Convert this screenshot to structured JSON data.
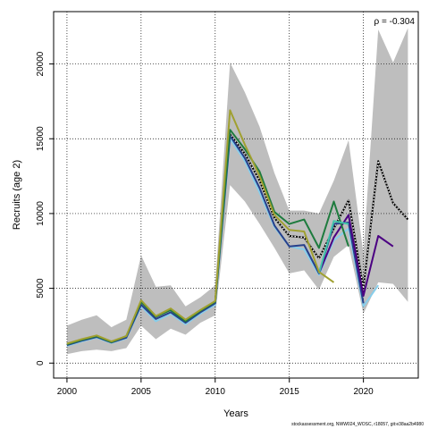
{
  "chart_data": {
    "type": "line",
    "xlabel": "Years",
    "ylabel": "Recruits (age 2)",
    "annotation": "ρ = -0.304",
    "xlim": [
      1999.1,
      2023.7
    ],
    "ylim": [
      -1000,
      23500
    ],
    "x_ticks": [
      2000,
      2005,
      2010,
      2015,
      2020
    ],
    "y_ticks": [
      0,
      5000,
      10000,
      15000,
      20000
    ],
    "grid": true,
    "grid_style": "dotted",
    "band": {
      "x": [
        2000,
        2001,
        2002,
        2003,
        2004,
        2005,
        2006,
        2007,
        2008,
        2009,
        2010,
        2011,
        2012,
        2013,
        2014,
        2015,
        2016,
        2017,
        2018,
        2019,
        2020,
        2021,
        2022,
        2023
      ],
      "lower": [
        600,
        800,
        900,
        800,
        1000,
        2500,
        1600,
        2300,
        1900,
        2700,
        3200,
        11900,
        10800,
        9300,
        7700,
        6000,
        6200,
        4900,
        7100,
        7900,
        3300,
        5400,
        5300,
        4100
      ],
      "upper": [
        2500,
        2900,
        3200,
        2400,
        2900,
        7200,
        5100,
        5200,
        3800,
        4400,
        5200,
        20100,
        18100,
        15800,
        12700,
        10200,
        10200,
        10000,
        12200,
        14900,
        7300,
        22300,
        20100,
        22400
      ],
      "color": "#bebebe"
    },
    "series": [
      {
        "color": "#000000",
        "style": "solid",
        "x": [
          2000,
          2001,
          2002,
          2003,
          2004,
          2005,
          2006,
          2007,
          2008,
          2009,
          2010,
          2011,
          2012,
          2013,
          2014,
          2015,
          2016,
          2017,
          2018,
          2019,
          2020,
          2021,
          2022,
          2023
        ],
        "y": [
          1250,
          1550,
          1800,
          1400,
          1750,
          4100,
          3100,
          3600,
          2800,
          3500,
          4100,
          15300,
          14000,
          12200,
          9700,
          8500,
          8400,
          7000,
          9000,
          10900,
          5000,
          13500,
          10700,
          9600
        ]
      },
      {
        "color": "#ffffff",
        "style": "dotted",
        "x": [
          2000,
          2001,
          2002,
          2003,
          2004,
          2005,
          2006,
          2007,
          2008,
          2009,
          2010,
          2011,
          2012,
          2013,
          2014,
          2015,
          2016,
          2017,
          2018,
          2019,
          2020,
          2021,
          2022,
          2023
        ],
        "y": [
          1250,
          1550,
          1800,
          1400,
          1750,
          4100,
          3100,
          3600,
          2800,
          3500,
          4100,
          15300,
          14000,
          12200,
          9700,
          8500,
          8400,
          7000,
          9000,
          10900,
          5000,
          13500,
          10700,
          9600
        ]
      },
      {
        "color": "#87ceeb",
        "style": "solid",
        "x": [
          2000,
          2001,
          2002,
          2003,
          2004,
          2005,
          2006,
          2007,
          2008,
          2009,
          2010,
          2011,
          2012,
          2013,
          2014,
          2015,
          2016,
          2017,
          2018,
          2019,
          2020,
          2021
        ],
        "y": [
          1150,
          1450,
          1700,
          1350,
          1650,
          3800,
          2800,
          3300,
          2600,
          3300,
          3900,
          15000,
          13500,
          11400,
          9100,
          7800,
          7600,
          5900,
          8200,
          9000,
          3800,
          5200
        ]
      },
      {
        "color": "#27408b",
        "style": "solid",
        "x": [
          2000,
          2001,
          2002,
          2003,
          2004,
          2005,
          2006,
          2007,
          2008,
          2009,
          2010,
          2011,
          2012,
          2013,
          2014,
          2015,
          2016,
          2017,
          2018,
          2019,
          2020
        ],
        "y": [
          1200,
          1500,
          1750,
          1380,
          1700,
          3900,
          2950,
          3400,
          2700,
          3400,
          4000,
          15200,
          13700,
          11700,
          9200,
          7800,
          7900,
          6000,
          9300,
          9400,
          4000
        ]
      },
      {
        "color": "#4b0082",
        "style": "solid",
        "x": [
          2017,
          2018,
          2019,
          2020,
          2021,
          2022
        ],
        "y": [
          6000,
          8400,
          9900,
          4500,
          8500,
          7800
        ]
      },
      {
        "color": "#1e7b3e",
        "style": "solid",
        "x": [
          2000,
          2001,
          2002,
          2003,
          2004,
          2005,
          2006,
          2007,
          2008,
          2009,
          2010,
          2011,
          2012,
          2013,
          2014,
          2015,
          2016,
          2017,
          2018,
          2019
        ],
        "y": [
          1250,
          1550,
          1800,
          1400,
          1800,
          4100,
          3100,
          3550,
          2800,
          3500,
          4100,
          15600,
          14300,
          12800,
          10100,
          9300,
          9600,
          7700,
          10800,
          7800
        ]
      },
      {
        "color": "#40c4aa",
        "style": "solid",
        "x": [
          2017,
          2018,
          2019
        ],
        "y": [
          6000,
          9500,
          9300
        ]
      },
      {
        "color": "#a0a030",
        "style": "solid",
        "x": [
          2000,
          2001,
          2002,
          2003,
          2004,
          2005,
          2006,
          2007,
          2008,
          2009,
          2010,
          2011,
          2012,
          2013,
          2014,
          2015,
          2016,
          2017,
          2018
        ],
        "y": [
          1300,
          1600,
          1850,
          1450,
          1800,
          4200,
          3150,
          3650,
          2900,
          3550,
          4150,
          16900,
          14600,
          12500,
          9900,
          8900,
          8800,
          6100,
          5400
        ]
      }
    ]
  },
  "footer": "stockassessment.org, NWW024_WOSC, r18057, git:e38aa2b4980"
}
